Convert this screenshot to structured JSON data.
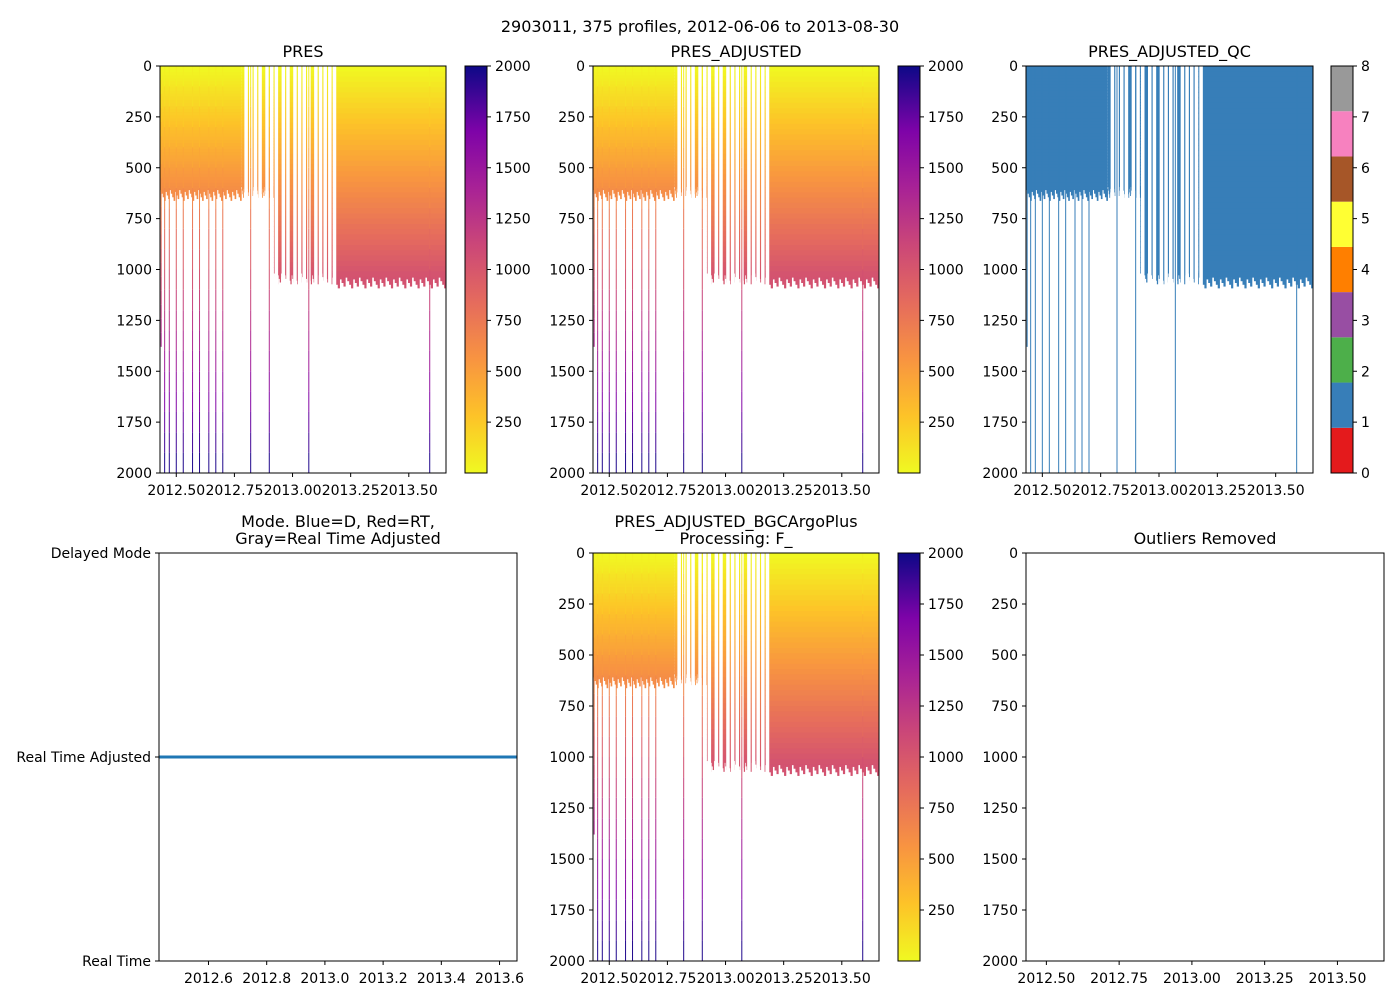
{
  "figure_title": "2903011, 375 profiles, 2012-06-06 to 2013-08-30",
  "chart_data": [
    {
      "type": "heatmap",
      "title": "PRES",
      "xlim": [
        2012.43,
        2013.66
      ],
      "ylim": [
        2000,
        0
      ],
      "xticks": [
        2012.5,
        2012.75,
        2013.0,
        2013.25,
        2013.5
      ],
      "xtick_labels": [
        "2012.50",
        "2012.75",
        "2013.00",
        "2013.25",
        "2013.50"
      ],
      "yticks": [
        0,
        250,
        500,
        750,
        1000,
        1250,
        1500,
        1750,
        2000
      ],
      "ytick_labels": [
        "0",
        "250",
        "500",
        "750",
        "1000",
        "1250",
        "1500",
        "1750",
        "2000"
      ],
      "colorbar": {
        "colormap": "plasma_r",
        "range": [
          0,
          2000
        ],
        "ticks": [
          250,
          500,
          750,
          1000,
          1250,
          1500,
          1750,
          2000
        ],
        "tick_labels": [
          "250",
          "500",
          "750",
          "1000",
          "1250",
          "1500",
          "1750",
          "2000"
        ]
      },
      "profiles": {
        "segments": [
          {
            "x_start": 2012.43,
            "x_end": 2012.78,
            "max_depth": 605
          },
          {
            "x_start": 2012.78,
            "x_end": 2012.92,
            "max_depth": 590
          },
          {
            "x_start": 2012.92,
            "x_end": 2013.17,
            "max_depth": 1015
          },
          {
            "x_start": 2013.17,
            "x_end": 2013.66,
            "max_depth": 1035
          }
        ],
        "deep_profiles": [
          {
            "x": 2012.435,
            "depth": 1380
          },
          {
            "x": 2012.45,
            "depth": 2000
          },
          {
            "x": 2012.47,
            "depth": 2000
          },
          {
            "x": 2012.5,
            "depth": 2000
          },
          {
            "x": 2012.53,
            "depth": 2000
          },
          {
            "x": 2012.57,
            "depth": 2000
          },
          {
            "x": 2012.6,
            "depth": 2000
          },
          {
            "x": 2012.64,
            "depth": 2000
          },
          {
            "x": 2012.67,
            "depth": 2000
          },
          {
            "x": 2012.7,
            "depth": 2000
          },
          {
            "x": 2012.82,
            "depth": 2000
          },
          {
            "x": 2012.9,
            "depth": 2000
          },
          {
            "x": 2013.07,
            "depth": 2000
          },
          {
            "x": 2013.59,
            "depth": 2000
          }
        ],
        "gap_columns": [
          2012.78,
          2012.8,
          2012.82,
          2012.84,
          2012.87,
          2012.89,
          2012.91,
          2012.94,
          2012.96,
          2012.99,
          2013.01,
          2013.03,
          2013.05,
          2013.08,
          2013.1,
          2013.12,
          2013.14,
          2013.16
        ]
      }
    },
    {
      "type": "heatmap",
      "title": "PRES_ADJUSTED",
      "xlim": [
        2012.43,
        2013.66
      ],
      "ylim": [
        2000,
        0
      ],
      "xticks": [
        2012.5,
        2012.75,
        2013.0,
        2013.25,
        2013.5
      ],
      "xtick_labels": [
        "2012.50",
        "2012.75",
        "2013.00",
        "2013.25",
        "2013.50"
      ],
      "yticks": [
        0,
        250,
        500,
        750,
        1000,
        1250,
        1500,
        1750,
        2000
      ],
      "ytick_labels": [
        "0",
        "250",
        "500",
        "750",
        "1000",
        "1250",
        "1500",
        "1750",
        "2000"
      ],
      "colorbar": {
        "colormap": "plasma_r",
        "range": [
          0,
          2000
        ],
        "ticks": [
          250,
          500,
          750,
          1000,
          1250,
          1500,
          1750,
          2000
        ],
        "tick_labels": [
          "250",
          "500",
          "750",
          "1000",
          "1250",
          "1500",
          "1750",
          "2000"
        ]
      }
    },
    {
      "type": "heatmap",
      "title": "PRES_ADJUSTED_QC",
      "xlim": [
        2012.43,
        2013.66
      ],
      "ylim": [
        2000,
        0
      ],
      "xticks": [
        2012.5,
        2012.75,
        2013.0,
        2013.25,
        2013.5
      ],
      "xtick_labels": [
        "2012.50",
        "2012.75",
        "2013.00",
        "2013.25",
        "2013.50"
      ],
      "yticks": [
        0,
        250,
        500,
        750,
        1000,
        1250,
        1500,
        1750,
        2000
      ],
      "ytick_labels": [
        "0",
        "250",
        "500",
        "750",
        "1000",
        "1250",
        "1500",
        "1750",
        "2000"
      ],
      "qc_value": 1,
      "colorbar": {
        "colormap": "Set1",
        "range": [
          0,
          8
        ],
        "ticks": [
          0,
          1,
          2,
          3,
          4,
          5,
          6,
          7,
          8
        ],
        "tick_labels": [
          "0",
          "1",
          "2",
          "3",
          "4",
          "5",
          "6",
          "7",
          "8"
        ],
        "colors": [
          "#e41a1c",
          "#377eb8",
          "#4daf4a",
          "#984ea3",
          "#ff7f00",
          "#ffff33",
          "#a65628",
          "#f781bf",
          "#999999"
        ]
      }
    },
    {
      "type": "line",
      "title": "Mode. Blue=D, Red=RT,\nGray=Real Time Adjusted",
      "title_lines": [
        "Mode. Blue=D, Red=RT,",
        "Gray=Real Time Adjusted"
      ],
      "xlim": [
        2012.43,
        2013.66
      ],
      "ylim": [
        0,
        2
      ],
      "xticks": [
        2012.6,
        2012.8,
        2013.0,
        2013.2,
        2013.4,
        2013.6
      ],
      "xtick_labels": [
        "2012.6",
        "2012.8",
        "2013.0",
        "2013.2",
        "2013.4",
        "2013.6"
      ],
      "yticks": [
        0,
        1,
        2
      ],
      "ytick_labels": [
        "Real Time",
        "Real Time Adjusted",
        "Delayed Mode"
      ],
      "series": [
        {
          "name": "mode",
          "color": "#1f77b4",
          "x": [
            2012.43,
            2013.66
          ],
          "y": [
            1,
            1
          ]
        }
      ]
    },
    {
      "type": "heatmap",
      "title": "PRES_ADJUSTED_BGCArgoPlus\nProcessing: F_",
      "title_lines": [
        "PRES_ADJUSTED_BGCArgoPlus",
        "Processing: F_"
      ],
      "xlim": [
        2012.43,
        2013.66
      ],
      "ylim": [
        2000,
        0
      ],
      "xticks": [
        2012.5,
        2012.75,
        2013.0,
        2013.25,
        2013.5
      ],
      "xtick_labels": [
        "2012.50",
        "2012.75",
        "2013.00",
        "2013.25",
        "2013.50"
      ],
      "yticks": [
        0,
        250,
        500,
        750,
        1000,
        1250,
        1500,
        1750,
        2000
      ],
      "ytick_labels": [
        "0",
        "250",
        "500",
        "750",
        "1000",
        "1250",
        "1500",
        "1750",
        "2000"
      ],
      "colorbar": {
        "colormap": "plasma_r",
        "range": [
          0,
          2000
        ],
        "ticks": [
          250,
          500,
          750,
          1000,
          1250,
          1500,
          1750,
          2000
        ],
        "tick_labels": [
          "250",
          "500",
          "750",
          "1000",
          "1250",
          "1500",
          "1750",
          "2000"
        ]
      }
    },
    {
      "type": "scatter",
      "title": "Outliers Removed",
      "xlim": [
        2012.43,
        2013.66
      ],
      "ylim": [
        2000,
        0
      ],
      "xticks": [
        2012.5,
        2012.75,
        2013.0,
        2013.25,
        2013.5
      ],
      "xtick_labels": [
        "2012.50",
        "2012.75",
        "2013.00",
        "2013.25",
        "2013.50"
      ],
      "yticks": [
        0,
        250,
        500,
        750,
        1000,
        1250,
        1500,
        1750,
        2000
      ],
      "ytick_labels": [
        "0",
        "250",
        "500",
        "750",
        "1000",
        "1250",
        "1500",
        "1750",
        "2000"
      ],
      "points": []
    }
  ]
}
